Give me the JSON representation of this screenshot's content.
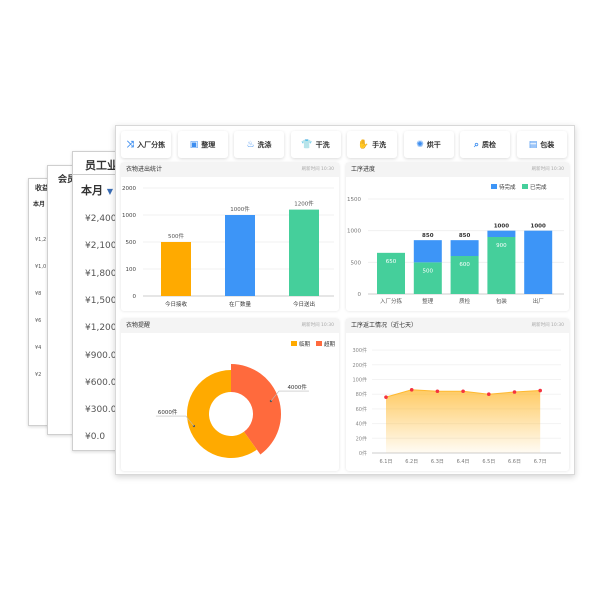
{
  "back_cards": [
    {
      "title": "收益",
      "period": "本月",
      "ticks": [
        "¥1,2",
        "¥1,0",
        "¥8",
        "¥6",
        "¥4",
        "¥2"
      ]
    },
    {
      "title": "会员"
    },
    {
      "title": "员工业绩",
      "period": "本月",
      "ticks": [
        "¥2,400.0",
        "¥2,100.0",
        "¥1,800.0",
        "¥1,500.0",
        "¥1,200.0",
        "¥900.0",
        "¥600.0",
        "¥300.0",
        "¥0.0"
      ]
    }
  ],
  "toolbar": [
    {
      "label": "入厂分拣",
      "icon": "shuffle-icon"
    },
    {
      "label": "整理",
      "icon": "box-icon"
    },
    {
      "label": "洗涤",
      "icon": "wash-icon"
    },
    {
      "label": "干洗",
      "icon": "shirt-icon"
    },
    {
      "label": "手洗",
      "icon": "hand-wash-icon"
    },
    {
      "label": "烘干",
      "icon": "dryer-icon"
    },
    {
      "label": "质检",
      "icon": "inspect-icon"
    },
    {
      "label": "包装",
      "icon": "package-icon"
    }
  ],
  "refresh_text": "刷新时间 10:30",
  "chart_data": [
    {
      "id": "laundry-stats",
      "type": "bar",
      "title": "衣物进出统计",
      "categories": [
        "今日接收",
        "在厂数量",
        "今日送出"
      ],
      "values": [
        500,
        1000,
        1200
      ],
      "data_labels": [
        "500件",
        "1000件",
        "1200件"
      ],
      "yticks": [
        "0",
        "100",
        "500",
        "1000",
        "2000"
      ],
      "colors": [
        "#ffaa00",
        "#3d95f7",
        "#45cf9b"
      ]
    },
    {
      "id": "process-progress",
      "type": "bar",
      "stacked": true,
      "title": "工序进度",
      "categories": [
        "入厂分拣",
        "整理",
        "质检",
        "包装",
        "出厂"
      ],
      "ylim": [
        0,
        1500
      ],
      "yticks": [
        "0",
        "500",
        "1000",
        "1500"
      ],
      "series": [
        {
          "name": "已完成",
          "values": [
            650,
            500,
            600,
            900,
            0
          ],
          "color": "#45cf9b"
        },
        {
          "name": "待完成",
          "values": [
            0,
            350,
            250,
            100,
            1000
          ],
          "color": "#3d95f7"
        }
      ],
      "totals": [
        null,
        850,
        850,
        1000,
        1000
      ]
    },
    {
      "id": "clothing-alert",
      "type": "pie",
      "title": "衣物提醒",
      "labels": [
        "临期",
        "超期"
      ],
      "values": [
        6000,
        4000
      ],
      "data_labels": [
        "6000件",
        "4000件"
      ],
      "colors": [
        "#ffaa00",
        "#ff6a3d"
      ]
    },
    {
      "id": "rework",
      "type": "area",
      "title": "工序返工情况（近七天）",
      "categories": [
        "6.1日",
        "6.2日",
        "6.3日",
        "6.4日",
        "6.5日",
        "6.6日",
        "6.7日"
      ],
      "values": [
        76,
        86,
        84,
        84,
        80,
        83,
        85
      ],
      "yticks": [
        "0件",
        "20件",
        "40件",
        "60件",
        "80件",
        "100件",
        "200件",
        "300件"
      ],
      "color": "#ffb930",
      "point_color": "#f5333f"
    }
  ]
}
